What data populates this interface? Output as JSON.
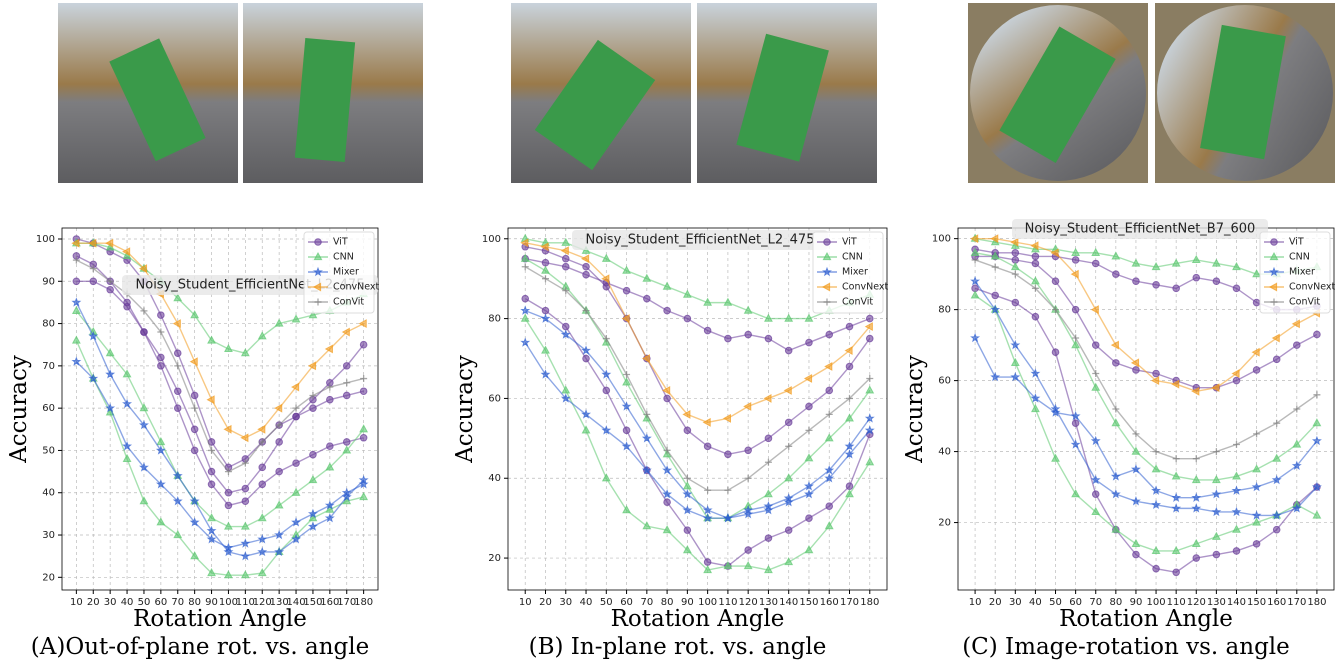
{
  "chart_data": [
    {
      "type": "line",
      "title": "(A)Out-of-plane rot. vs. angle",
      "xlabel": "Rotation Angle",
      "ylabel": "Accuracy",
      "annotation": "Noisy_Student_EfficientNet_L2_475",
      "grid": true,
      "legend": "upper right",
      "x": [
        10,
        20,
        30,
        40,
        50,
        60,
        70,
        80,
        90,
        100,
        110,
        120,
        130,
        140,
        150,
        160,
        170,
        180
      ],
      "xlim": [
        1.5,
        188.5
      ],
      "xticks": [
        10,
        20,
        30,
        40,
        50,
        60,
        70,
        80,
        90,
        100,
        110,
        120,
        130,
        140,
        150,
        160,
        170,
        180
      ],
      "ylim": [
        17,
        102.6
      ],
      "yticks": [
        20,
        30,
        40,
        50,
        60,
        70,
        80,
        90,
        100
      ],
      "series": [
        {
          "name": "ViT",
          "color": "#6a3d9a",
          "marker": "o",
          "values": [
            100,
            99,
            97,
            95,
            90,
            82,
            73,
            63,
            52,
            46,
            48,
            52,
            56,
            58,
            60,
            62,
            63,
            64
          ]
        },
        {
          "name": "ViT",
          "color": "#6a3d9a",
          "marker": "o",
          "values": [
            96,
            94,
            90,
            85,
            78,
            70,
            60,
            50,
            42,
            37,
            38,
            42,
            45,
            47,
            49,
            51,
            52,
            53
          ]
        },
        {
          "name": "ViT",
          "color": "#6a3d9a",
          "marker": "o",
          "values": [
            90,
            90,
            88,
            84,
            78,
            72,
            64,
            55,
            45,
            40,
            41,
            46,
            52,
            58,
            62,
            66,
            70,
            75
          ]
        },
        {
          "name": "CNN",
          "color": "#5cc870",
          "marker": "^",
          "values": [
            99,
            99,
            98,
            96,
            93,
            90,
            86,
            82,
            76,
            74,
            73,
            77,
            80,
            81,
            82,
            83,
            85,
            87
          ]
        },
        {
          "name": "CNN",
          "color": "#5cc870",
          "marker": "^",
          "values": [
            83,
            78,
            73,
            68,
            60,
            52,
            44,
            38,
            34,
            32,
            32,
            34,
            37,
            40,
            43,
            46,
            50,
            55
          ]
        },
        {
          "name": "CNN",
          "color": "#5cc870",
          "marker": "^",
          "values": [
            76,
            67,
            59,
            48,
            38,
            33,
            30,
            25,
            21,
            20.5,
            20.5,
            21,
            26,
            30,
            34,
            36,
            38,
            39
          ]
        },
        {
          "name": "Mixer",
          "color": "#2f5fd0",
          "marker": "*",
          "values": [
            85,
            77,
            68,
            61,
            56,
            50,
            44,
            38,
            31,
            26,
            25,
            26,
            26,
            29,
            32,
            34,
            39,
            43
          ]
        },
        {
          "name": "Mixer",
          "color": "#2f5fd0",
          "marker": "*",
          "values": [
            71,
            67,
            60,
            51,
            46,
            42,
            38,
            33,
            29,
            27,
            28,
            29,
            30,
            33,
            35,
            37,
            40,
            42
          ]
        },
        {
          "name": "ConvNext",
          "color": "#f29b1d",
          "marker": "<",
          "values": [
            99,
            99,
            99,
            97,
            93,
            87,
            80,
            71,
            62,
            55,
            53,
            55,
            60,
            65,
            70,
            74,
            78,
            80
          ]
        },
        {
          "name": "ConVit",
          "color": "#808080",
          "marker": "+",
          "values": [
            95,
            93,
            90,
            87,
            83,
            78,
            70,
            60,
            50,
            45,
            47,
            52,
            56,
            60,
            63,
            65,
            66,
            67
          ]
        }
      ]
    },
    {
      "type": "line",
      "title": "(B) In-plane rot. vs. angle",
      "xlabel": "Rotation Angle",
      "ylabel": "Accuracy",
      "annotation": "Noisy_Student_EfficientNet_L2_475",
      "grid": true,
      "legend": "upper right",
      "x": [
        10,
        20,
        30,
        40,
        50,
        60,
        70,
        80,
        90,
        100,
        110,
        120,
        130,
        140,
        150,
        160,
        170,
        180
      ],
      "xlim": [
        1.5,
        188.5
      ],
      "xticks": [
        10,
        20,
        30,
        40,
        50,
        60,
        70,
        80,
        90,
        100,
        110,
        120,
        130,
        140,
        150,
        160,
        170,
        180
      ],
      "ylim": [
        12,
        102.7
      ],
      "yticks": [
        20,
        40,
        60,
        80,
        100
      ],
      "series": [
        {
          "name": "ViT",
          "color": "#6a3d9a",
          "marker": "o",
          "values": [
            95,
            94,
            93,
            91,
            89,
            87,
            85,
            82,
            80,
            77,
            75,
            76,
            75,
            72,
            74,
            76,
            78,
            80
          ]
        },
        {
          "name": "ViT",
          "color": "#6a3d9a",
          "marker": "o",
          "values": [
            85,
            82,
            78,
            70,
            62,
            52,
            42,
            34,
            27,
            19,
            18,
            22,
            25,
            27,
            30,
            33,
            38,
            51
          ]
        },
        {
          "name": "ViT",
          "color": "#6a3d9a",
          "marker": "o",
          "values": [
            98,
            97,
            95,
            93,
            88,
            80,
            70,
            60,
            52,
            48,
            46,
            47,
            50,
            54,
            58,
            62,
            68,
            75
          ]
        },
        {
          "name": "CNN",
          "color": "#5cc870",
          "marker": "^",
          "values": [
            100,
            99,
            99,
            97,
            95,
            92,
            90,
            88,
            86,
            84,
            84,
            82,
            80,
            80,
            80,
            82,
            84,
            86
          ]
        },
        {
          "name": "CNN",
          "color": "#5cc870",
          "marker": "^",
          "values": [
            80,
            72,
            62,
            52,
            40,
            32,
            28,
            27,
            22,
            17,
            18,
            18,
            17,
            19,
            22,
            28,
            36,
            44
          ]
        },
        {
          "name": "CNN",
          "color": "#5cc870",
          "marker": "^",
          "values": [
            95,
            92,
            88,
            82,
            74,
            64,
            55,
            46,
            38,
            30,
            30,
            33,
            36,
            40,
            45,
            50,
            55,
            62
          ]
        },
        {
          "name": "Mixer",
          "color": "#2f5fd0",
          "marker": "*",
          "values": [
            74,
            66,
            60,
            56,
            52,
            48,
            42,
            36,
            32,
            30,
            30,
            31,
            32,
            34,
            36,
            40,
            46,
            52
          ]
        },
        {
          "name": "Mixer",
          "color": "#2f5fd0",
          "marker": "*",
          "values": [
            82,
            80,
            76,
            72,
            66,
            58,
            50,
            42,
            36,
            32,
            30,
            32,
            33,
            35,
            38,
            42,
            48,
            55
          ]
        },
        {
          "name": "ConvNext",
          "color": "#f29b1d",
          "marker": "<",
          "values": [
            99,
            98,
            97,
            95,
            90,
            80,
            70,
            62,
            56,
            54,
            55,
            58,
            60,
            62,
            65,
            68,
            72,
            78
          ]
        },
        {
          "name": "ConVit",
          "color": "#808080",
          "marker": "+",
          "values": [
            93,
            90,
            87,
            82,
            75,
            66,
            56,
            47,
            40,
            37,
            37,
            40,
            44,
            48,
            52,
            56,
            60,
            65
          ]
        }
      ]
    },
    {
      "type": "line",
      "title": "(C) Image-rotation vs. angle",
      "xlabel": "Rotation Angle",
      "ylabel": "Accuracy",
      "annotation": "Noisy_Student_EfficientNet_B7_600",
      "grid": true,
      "legend": "upper right",
      "x": [
        10,
        20,
        30,
        40,
        50,
        60,
        70,
        80,
        90,
        100,
        110,
        120,
        130,
        140,
        150,
        160,
        170,
        180
      ],
      "xlim": [
        1.5,
        188.5
      ],
      "xticks": [
        10,
        20,
        30,
        40,
        50,
        60,
        70,
        80,
        90,
        100,
        110,
        120,
        130,
        140,
        150,
        160,
        170,
        180
      ],
      "ylim": [
        1,
        103
      ],
      "yticks": [
        20,
        40,
        60,
        80,
        100
      ],
      "series": [
        {
          "name": "ViT",
          "color": "#6a3d9a",
          "marker": "o",
          "values": [
            97,
            96,
            96,
            95,
            95,
            94,
            93,
            90,
            88,
            87,
            86,
            89,
            88,
            86,
            82,
            80,
            80,
            81
          ]
        },
        {
          "name": "ViT",
          "color": "#6a3d9a",
          "marker": "o",
          "values": [
            86,
            84,
            82,
            78,
            68,
            48,
            28,
            18,
            11,
            7,
            6,
            10,
            11,
            12,
            14,
            18,
            25,
            30
          ]
        },
        {
          "name": "ViT",
          "color": "#6a3d9a",
          "marker": "o",
          "values": [
            95,
            95,
            94,
            93,
            88,
            80,
            70,
            65,
            63,
            62,
            60,
            58,
            58,
            60,
            63,
            66,
            70,
            73
          ]
        },
        {
          "name": "CNN",
          "color": "#5cc870",
          "marker": "^",
          "values": [
            100,
            99,
            98,
            97,
            97,
            96,
            96,
            95,
            93,
            92,
            93,
            94,
            93,
            92,
            90,
            90,
            91,
            92
          ]
        },
        {
          "name": "CNN",
          "color": "#5cc870",
          "marker": "^",
          "values": [
            84,
            80,
            65,
            52,
            38,
            28,
            23,
            18,
            14,
            12,
            12,
            14,
            16,
            18,
            20,
            22,
            25,
            22
          ]
        },
        {
          "name": "CNN",
          "color": "#5cc870",
          "marker": "^",
          "values": [
            96,
            95,
            92,
            88,
            80,
            70,
            58,
            48,
            40,
            35,
            33,
            32,
            32,
            33,
            35,
            38,
            42,
            48
          ]
        },
        {
          "name": "Mixer",
          "color": "#2f5fd0",
          "marker": "*",
          "values": [
            72,
            61,
            61,
            55,
            51,
            50,
            43,
            33,
            35,
            29,
            27,
            27,
            28,
            29,
            30,
            32,
            36,
            43
          ]
        },
        {
          "name": "Mixer",
          "color": "#2f5fd0",
          "marker": "*",
          "values": [
            88,
            80,
            70,
            62,
            52,
            42,
            32,
            28,
            26,
            25,
            24,
            24,
            23,
            23,
            22,
            22,
            24,
            30
          ]
        },
        {
          "name": "ConvNext",
          "color": "#f29b1d",
          "marker": "<",
          "values": [
            100,
            100,
            99,
            98,
            96,
            90,
            80,
            70,
            65,
            60,
            59,
            57,
            58,
            62,
            68,
            72,
            76,
            79
          ]
        },
        {
          "name": "ConVit",
          "color": "#808080",
          "marker": "+",
          "values": [
            94,
            92,
            90,
            86,
            80,
            72,
            62,
            52,
            45,
            40,
            38,
            38,
            40,
            42,
            45,
            48,
            52,
            56
          ]
        }
      ]
    }
  ]
}
